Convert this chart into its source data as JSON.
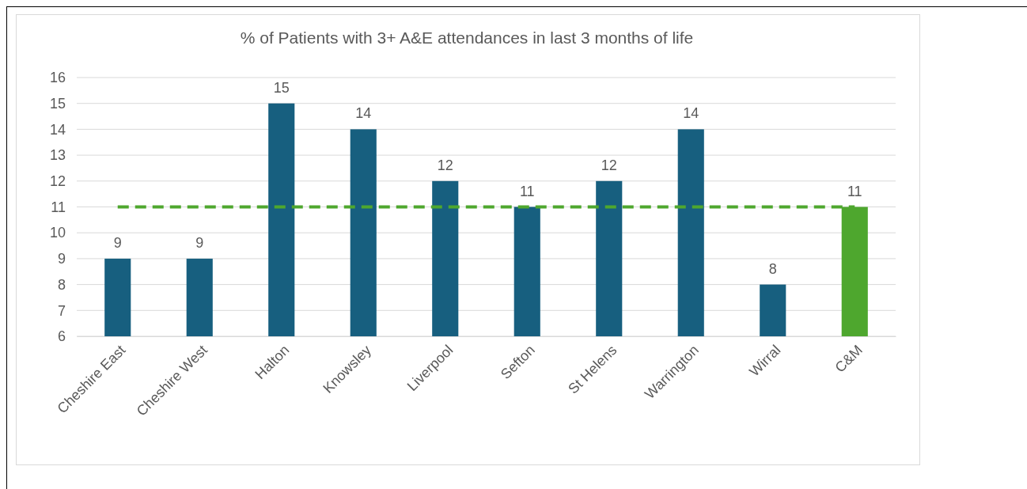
{
  "chart_data": {
    "type": "bar",
    "title": "% of Patients with 3+ A&E attendances in last 3 months of life",
    "categories": [
      "Cheshire East",
      "Cheshire West",
      "Halton",
      "Knowsley",
      "Liverpool",
      "Sefton",
      "St Helens",
      "Warrington",
      "Wirral",
      "C&M"
    ],
    "values": [
      9,
      9,
      15,
      14,
      12,
      11,
      12,
      14,
      8,
      11
    ],
    "colors": [
      "#175f7f",
      "#175f7f",
      "#175f7f",
      "#175f7f",
      "#175f7f",
      "#175f7f",
      "#175f7f",
      "#175f7f",
      "#175f7f",
      "#4ea72e"
    ],
    "ylim": [
      6,
      16
    ],
    "yticks": [
      6,
      7,
      8,
      9,
      10,
      11,
      12,
      13,
      14,
      15,
      16
    ],
    "grid": "y",
    "data_labels": true,
    "ref_lines": [
      {
        "axis": "y",
        "value": 11,
        "color": "#4ea72e",
        "line_style": "dashed"
      }
    ]
  }
}
